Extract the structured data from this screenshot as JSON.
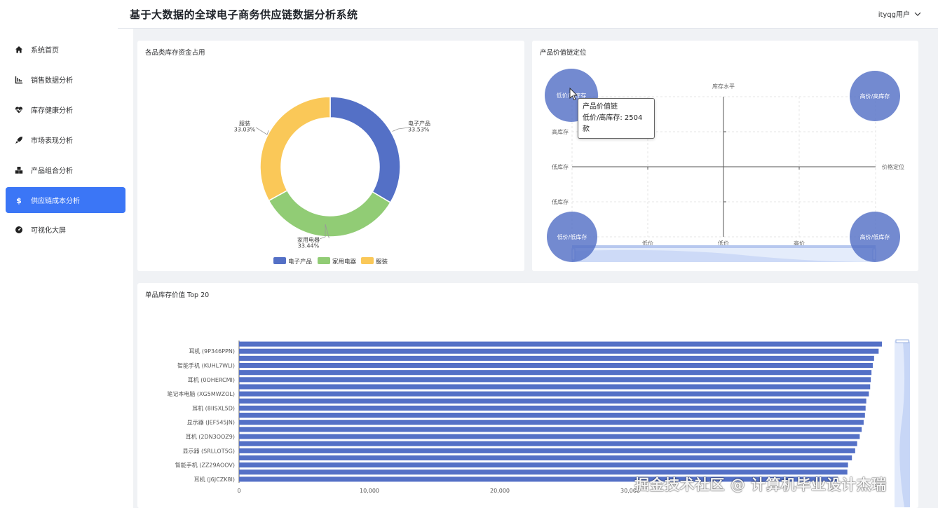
{
  "header": {
    "title": "基于大数据的全球电子商务供应链数据分析系统",
    "user": "ityqg用户"
  },
  "sidebar": {
    "items": [
      {
        "label": "系统首页",
        "icon": "home-icon",
        "active": false
      },
      {
        "label": "销售数据分析",
        "icon": "line-chart-icon",
        "active": false
      },
      {
        "label": "库存健康分析",
        "icon": "heartbeat-icon",
        "active": false
      },
      {
        "label": "市场表现分析",
        "icon": "rocket-icon",
        "active": false
      },
      {
        "label": "产品组合分析",
        "icon": "cubes-icon",
        "active": false
      },
      {
        "label": "供应链成本分析",
        "icon": "dollar-icon",
        "active": true
      },
      {
        "label": "可视化大屏",
        "icon": "dashboard-icon",
        "active": false
      }
    ]
  },
  "colors": {
    "accent": "#3b76f6",
    "blue": "#5470c6",
    "green": "#91cc75",
    "yellow": "#fac858"
  },
  "pie_card": {
    "title": "各品类库存资金占用"
  },
  "matrix_card": {
    "title": "产品价值链定位",
    "tooltip_title": "产品价值链",
    "tooltip_value": "低价/高库存: 2504 款"
  },
  "bar_card": {
    "title": "单品库存价值 Top 20"
  },
  "watermark": "掘金技术社区 @ 计算机毕业设计杰瑞",
  "chart_data": [
    {
      "type": "pie",
      "title": "各品类库存资金占用",
      "categories": [
        "电子产品",
        "家用电器",
        "服装"
      ],
      "values": [
        33.53,
        33.44,
        33.03
      ],
      "value_labels": [
        "33.53%",
        "33.44%",
        "33.03%"
      ],
      "colors": [
        "#5470c6",
        "#91cc75",
        "#fac858"
      ],
      "legend": "bottom"
    },
    {
      "type": "scatter",
      "title": "产品价值链定位",
      "xlabel": "价格定位",
      "ylabel": "库存水平",
      "x_ticks": [
        "低价",
        "低价",
        "高价"
      ],
      "y_ticks": [
        "高库存",
        "低库存",
        "低库存"
      ],
      "points": [
        {
          "label": "低价/高库存",
          "count": 2504
        },
        {
          "label": "高价/高库存"
        },
        {
          "label": "低价/低库存"
        },
        {
          "label": "高价/低库存"
        }
      ]
    },
    {
      "type": "bar",
      "orientation": "horizontal",
      "title": "单品库存价值 Top 20",
      "categories": [
        "耳机 (J6JCZK8I)",
        "",
        "智能手机 (ZZ29AOOV)",
        "",
        "显示器 (SRLLOT5G)",
        "",
        "耳机 (2DN3OOZ9)",
        "",
        "显示器 (JEF545JN)",
        "",
        "耳机 (8IISXL5D)",
        "",
        "笔记本电脑 (XG5MWZOL)",
        "",
        "耳机 (0OHERCMI)",
        "",
        "智能手机 (KUHL7WLI)",
        "",
        "耳机 (9P346PPN)",
        ""
      ],
      "values": [
        45920,
        46650,
        46700,
        47000,
        47250,
        47400,
        47600,
        47750,
        47900,
        48000,
        48050,
        48100,
        48300,
        48400,
        48450,
        48500,
        48600,
        48700,
        49050,
        49300
      ],
      "x_ticks": [
        "0",
        "10,000",
        "20,000",
        "30,000"
      ],
      "xlim": [
        0,
        50000
      ],
      "dataZoom": "right"
    }
  ]
}
